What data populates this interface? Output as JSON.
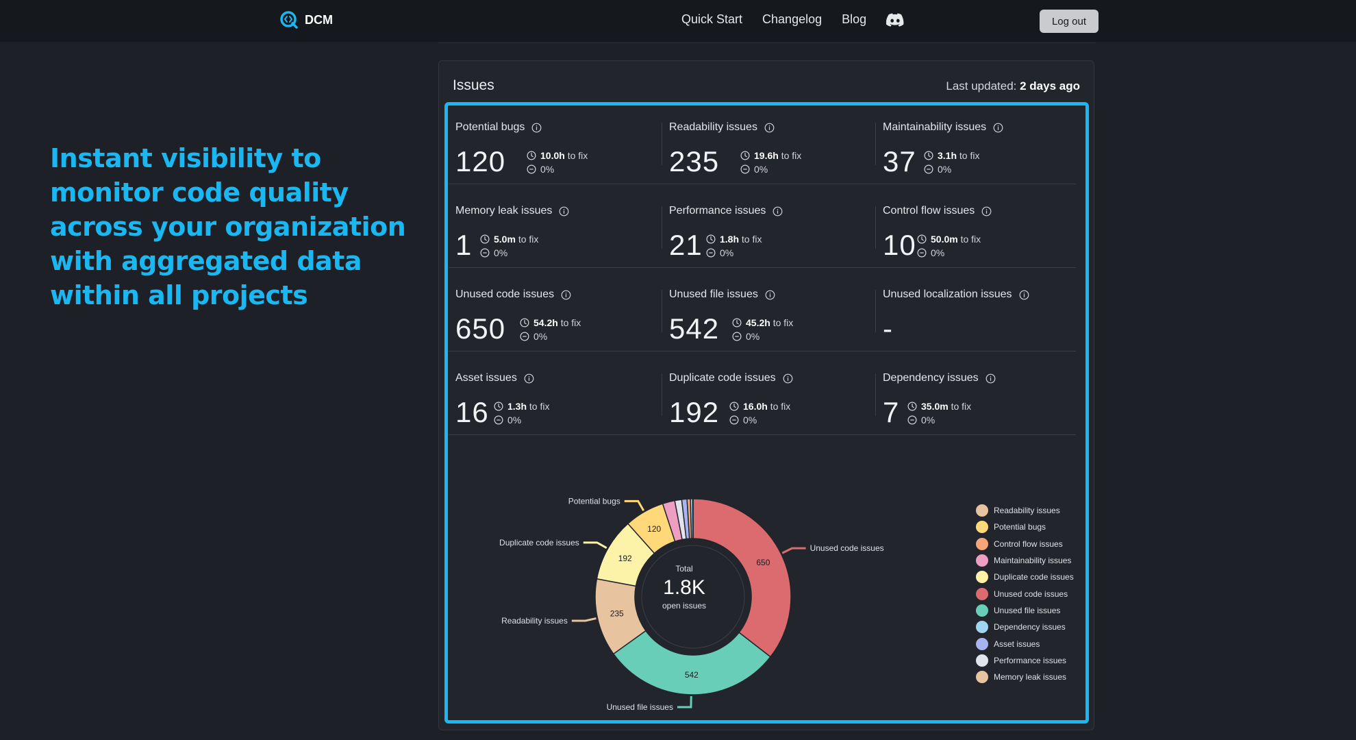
{
  "nav": {
    "brand": "DCM",
    "links": [
      "Quick Start",
      "Changelog",
      "Blog"
    ],
    "discord_icon": "discord-icon",
    "logout_label": "Log out"
  },
  "hero": {
    "headline": "Instant visibility to monitor code quality across your organization with aggregated data within all projects"
  },
  "card": {
    "title": "Issues",
    "last_updated_label": "Last updated:",
    "last_updated_value": "2 days ago"
  },
  "metrics": [
    {
      "label": "Potential bugs",
      "value": "120",
      "time": "10.0h",
      "time_suffix": "to fix",
      "change": "0%"
    },
    {
      "label": "Readability issues",
      "value": "235",
      "time": "19.6h",
      "time_suffix": "to fix",
      "change": "0%"
    },
    {
      "label": "Maintainability issues",
      "value": "37",
      "time": "3.1h",
      "time_suffix": "to fix",
      "change": "0%"
    },
    {
      "label": "Memory leak issues",
      "value": "1",
      "time": "5.0m",
      "time_suffix": "to fix",
      "change": "0%"
    },
    {
      "label": "Performance issues",
      "value": "21",
      "time": "1.8h",
      "time_suffix": "to fix",
      "change": "0%"
    },
    {
      "label": "Control flow issues",
      "value": "10",
      "time": "50.0m",
      "time_suffix": "to fix",
      "change": "0%"
    },
    {
      "label": "Unused code issues",
      "value": "650",
      "time": "54.2h",
      "time_suffix": "to fix",
      "change": "0%"
    },
    {
      "label": "Unused file issues",
      "value": "542",
      "time": "45.2h",
      "time_suffix": "to fix",
      "change": "0%"
    },
    {
      "label": "Unused localization issues",
      "value": "-",
      "time": null,
      "time_suffix": null,
      "change": null
    },
    {
      "label": "Asset issues",
      "value": "16",
      "time": "1.3h",
      "time_suffix": "to fix",
      "change": "0%"
    },
    {
      "label": "Duplicate code issues",
      "value": "192",
      "time": "16.0h",
      "time_suffix": "to fix",
      "change": "0%"
    },
    {
      "label": "Dependency issues",
      "value": "7",
      "time": "35.0m",
      "time_suffix": "to fix",
      "change": "0%"
    }
  ],
  "chart_data": {
    "type": "pie",
    "variant": "donut",
    "center_total_label": "Total",
    "center_value": "1.8K",
    "center_sub": "open issues",
    "slices": [
      {
        "name": "Unused code issues",
        "value": 650,
        "color": "#dc6b70",
        "label": "650",
        "callout": true
      },
      {
        "name": "Unused file issues",
        "value": 542,
        "color": "#68ceb8",
        "label": "542",
        "callout": true
      },
      {
        "name": "Readability issues",
        "value": 235,
        "color": "#e8c3a0",
        "label": "235",
        "callout": true
      },
      {
        "name": "Duplicate code issues",
        "value": 192,
        "color": "#fcf3a9",
        "label": "192",
        "callout": true
      },
      {
        "name": "Potential bugs",
        "value": 120,
        "color": "#ffd87a",
        "label": "120",
        "callout": true
      },
      {
        "name": "Maintainability issues",
        "value": 37,
        "color": "#ee9ec0",
        "label": "",
        "callout": false
      },
      {
        "name": "Performance issues",
        "value": 21,
        "color": "#e3e3ec",
        "label": "",
        "callout": false
      },
      {
        "name": "Asset issues",
        "value": 16,
        "color": "#a8b4f2",
        "label": "",
        "callout": false
      },
      {
        "name": "Control flow issues",
        "value": 10,
        "color": "#f8a577",
        "label": "",
        "callout": false
      },
      {
        "name": "Dependency issues",
        "value": 7,
        "color": "#9fd5f1",
        "label": "",
        "callout": false
      },
      {
        "name": "Memory leak issues",
        "value": 1,
        "color": "#e8c3a0",
        "label": "",
        "callout": false
      }
    ],
    "legend": [
      {
        "name": "Readability issues",
        "color": "#e8c3a0"
      },
      {
        "name": "Potential bugs",
        "color": "#ffd87a"
      },
      {
        "name": "Control flow issues",
        "color": "#f8a577"
      },
      {
        "name": "Maintainability issues",
        "color": "#ee9ec0"
      },
      {
        "name": "Duplicate code issues",
        "color": "#fcf3a9"
      },
      {
        "name": "Unused code issues",
        "color": "#dc6b70"
      },
      {
        "name": "Unused file issues",
        "color": "#68ceb8"
      },
      {
        "name": "Dependency issues",
        "color": "#9fd5f1"
      },
      {
        "name": "Asset issues",
        "color": "#a8b4f2"
      },
      {
        "name": "Performance issues",
        "color": "#e3e3ec"
      },
      {
        "name": "Memory leak issues",
        "color": "#e8c3a0"
      }
    ]
  }
}
